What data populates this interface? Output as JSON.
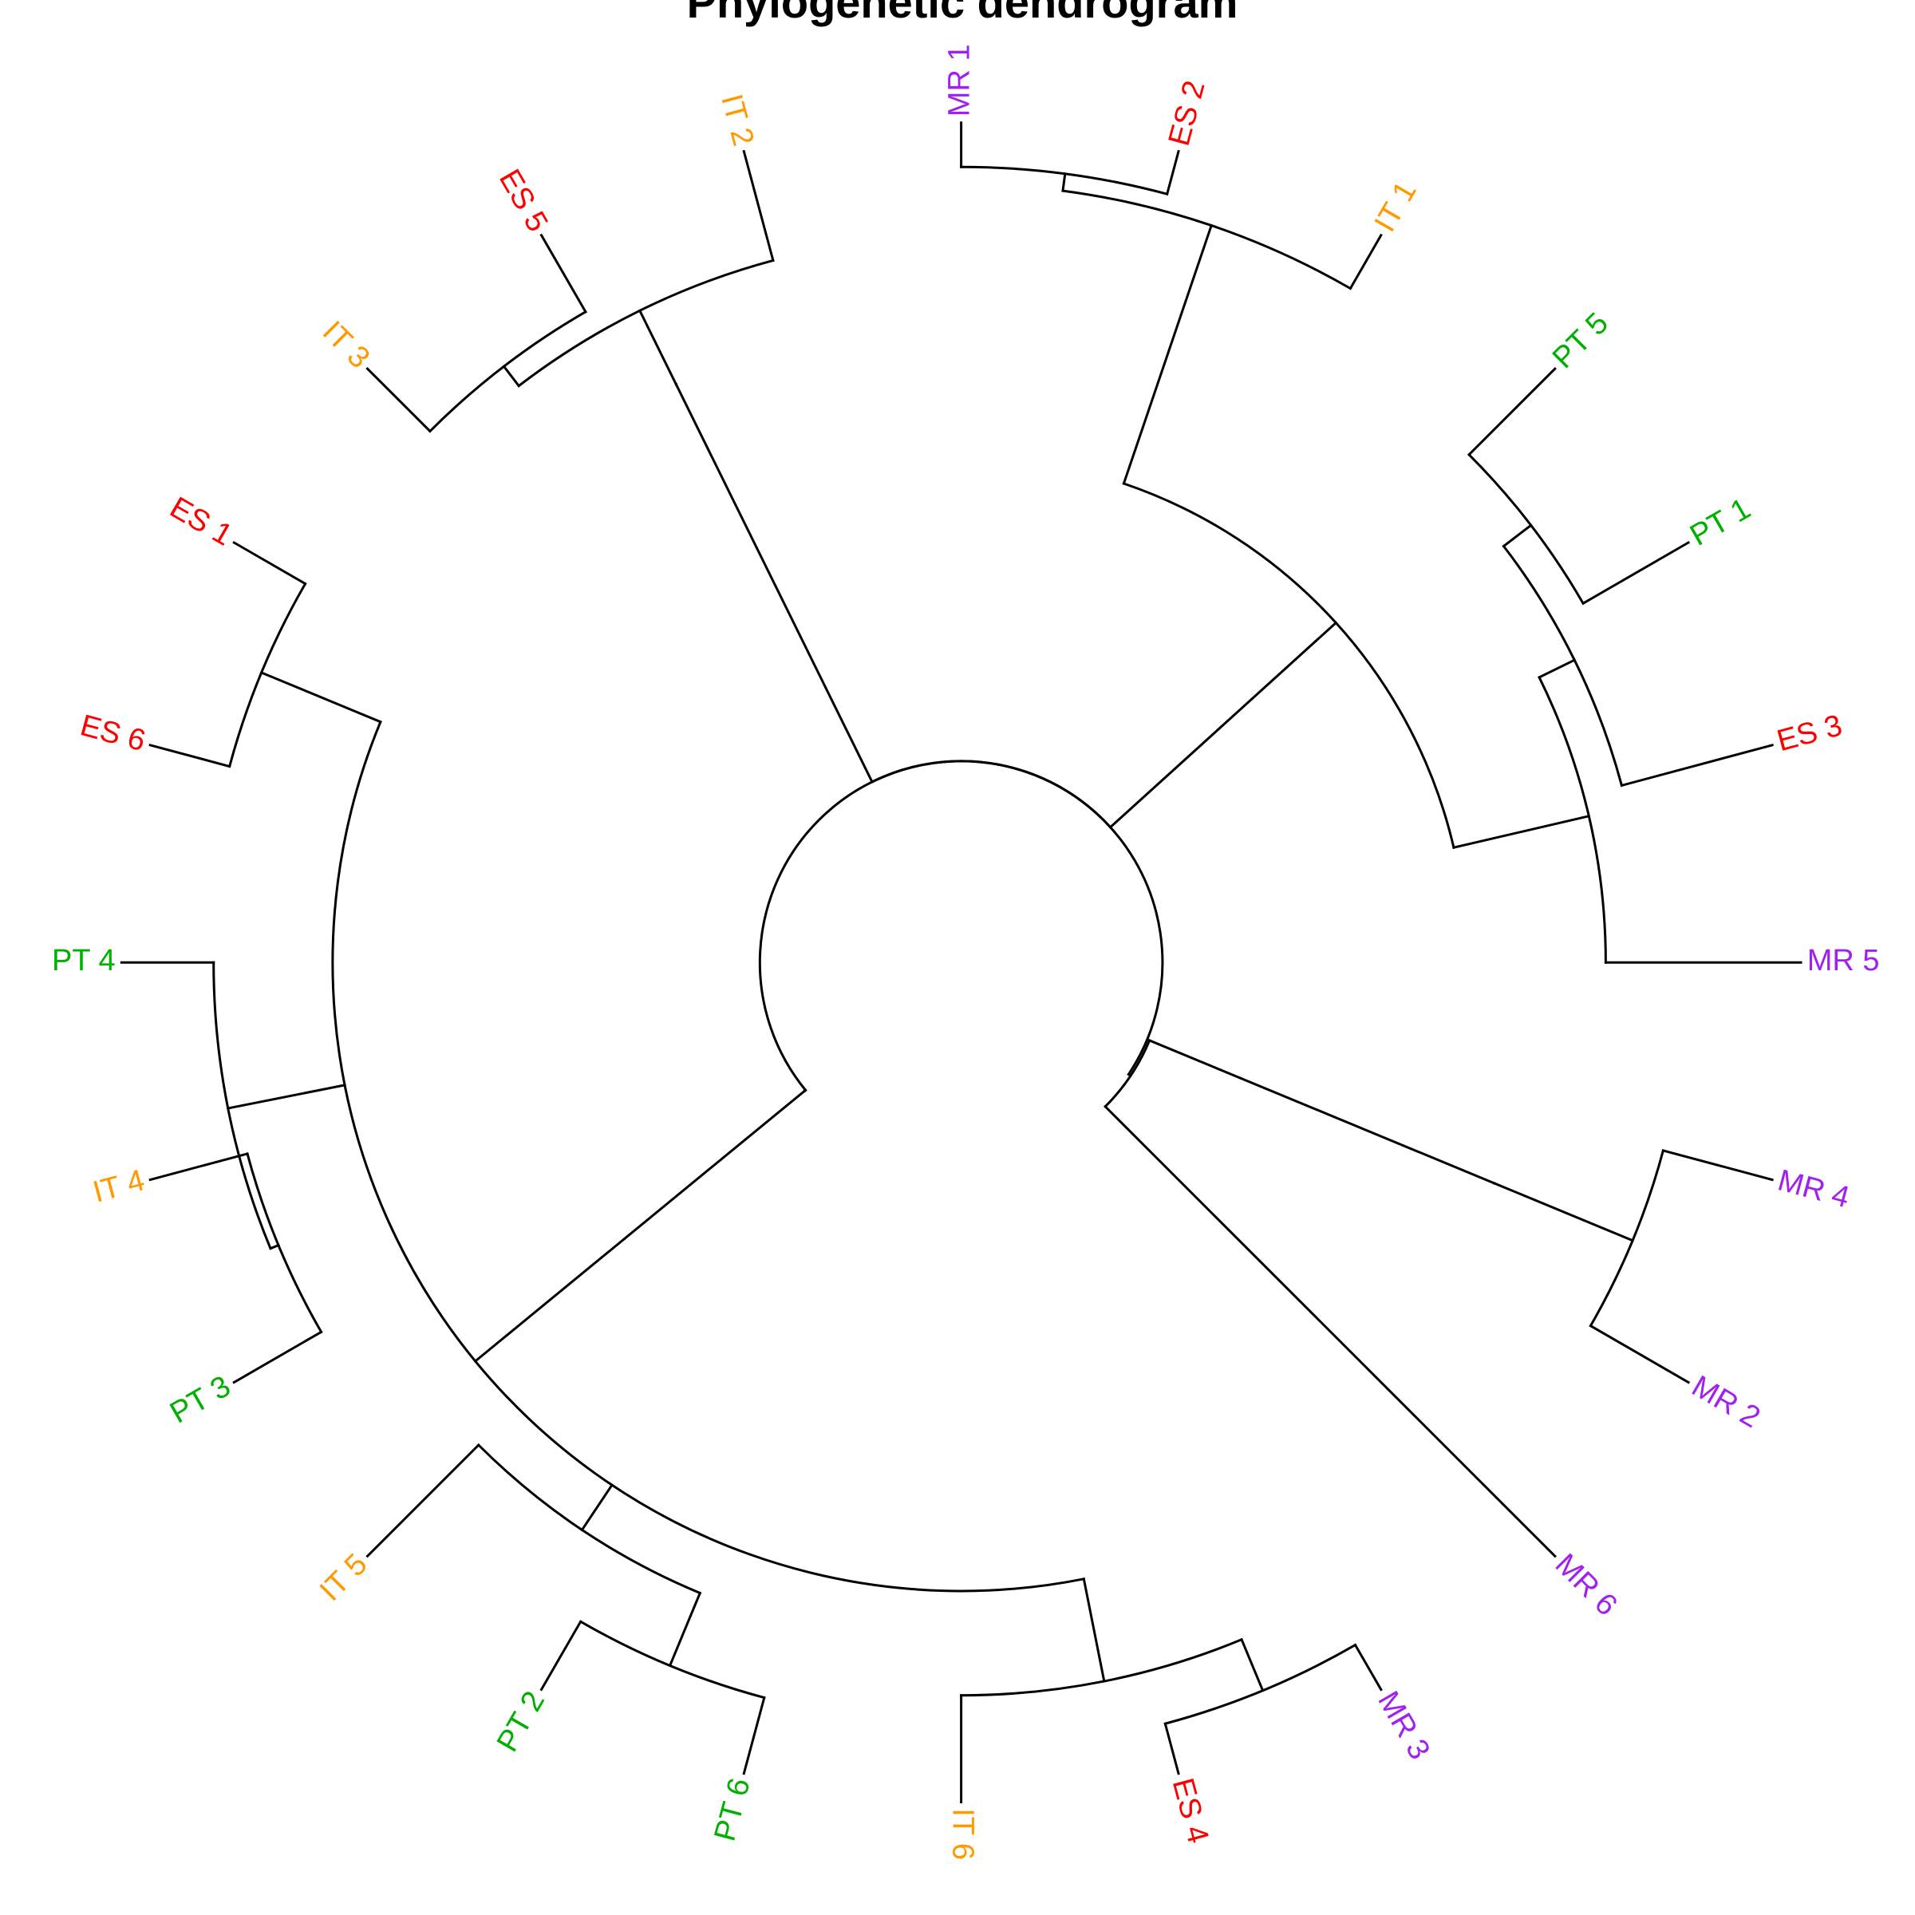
{
  "title": "Phylogenetic dendrogram",
  "group_colors": {
    "MR": "#A020F0",
    "ES": "#FF0000",
    "IT": "#FF9900",
    "PT": "#00B000"
  },
  "tips": [
    {
      "label": "MR 1",
      "group": "MR"
    },
    {
      "label": "ES 2",
      "group": "ES"
    },
    {
      "label": "IT 1",
      "group": "IT"
    },
    {
      "label": "PT 5",
      "group": "PT"
    },
    {
      "label": "PT 1",
      "group": "PT"
    },
    {
      "label": "ES 3",
      "group": "ES"
    },
    {
      "label": "MR 5",
      "group": "MR"
    },
    {
      "label": "MR 4",
      "group": "MR"
    },
    {
      "label": "MR 2",
      "group": "MR"
    },
    {
      "label": "MR 6",
      "group": "MR"
    },
    {
      "label": "MR 3",
      "group": "MR"
    },
    {
      "label": "ES 4",
      "group": "ES"
    },
    {
      "label": "IT 6",
      "group": "IT"
    },
    {
      "label": "PT 6",
      "group": "PT"
    },
    {
      "label": "PT 2",
      "group": "PT"
    },
    {
      "label": "IT 5",
      "group": "IT"
    },
    {
      "label": "PT 3",
      "group": "PT"
    },
    {
      "label": "IT 4",
      "group": "IT"
    },
    {
      "label": "PT 4",
      "group": "PT"
    },
    {
      "label": "ES 6",
      "group": "ES"
    },
    {
      "label": "ES 1",
      "group": "ES"
    },
    {
      "label": "IT 3",
      "group": "IT"
    },
    {
      "label": "ES 5",
      "group": "ES"
    },
    {
      "label": "IT 2",
      "group": "IT"
    }
  ]
}
